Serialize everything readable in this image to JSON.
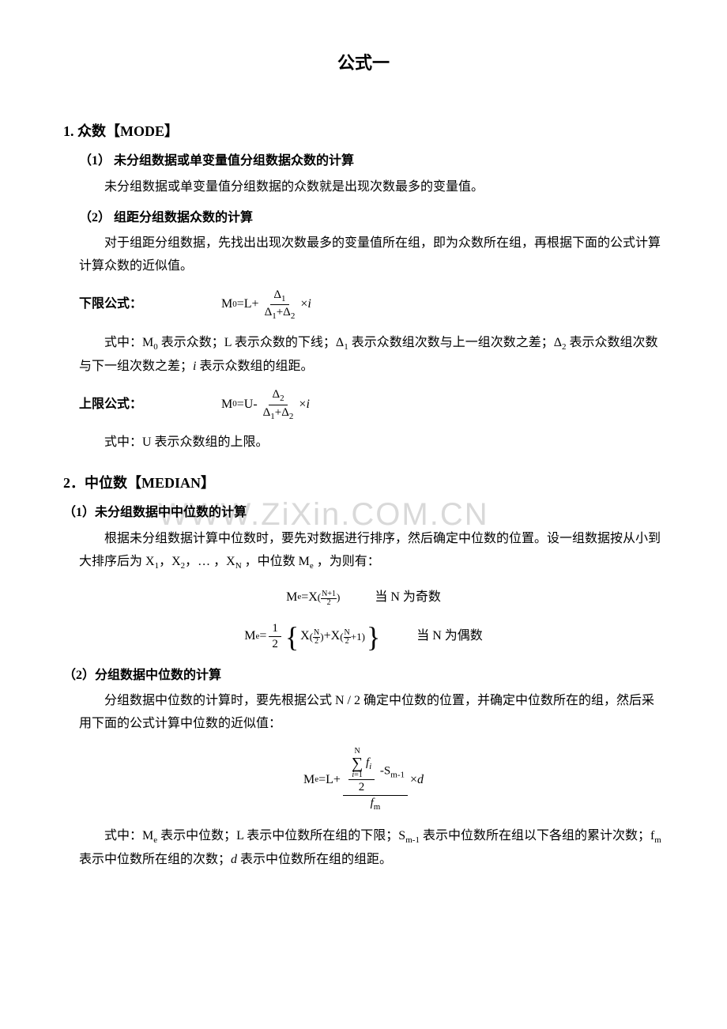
{
  "doc_title": "公式一",
  "section1": {
    "heading": "1. 众数【MODE】",
    "sub1_title": "（1） 未分组数据或单变量值分组数据众数的计算",
    "sub1_text": "未分组数据或单变量值分组数据的众数就是出现次数最多的变量值。",
    "sub2_title": "（2） 组距分组数据众数的计算",
    "sub2_text": "对于组距分组数据，先找出出现次数最多的变量值所在组，即为众数所在组，再根据下面的公式计算计算众数的近似值。",
    "lower_label": "下限公式：",
    "lower_explain": "式中：M₀ 表示众数；L 表示众数的下线；Δ₁ 表示众数组次数与上一组次数之差；Δ₂ 表示众数组次数与下一组次数之差；i 表示众数组的组距。",
    "upper_label": "上限公式：",
    "upper_explain": "式中：U 表示众数组的上限。"
  },
  "section2": {
    "heading": "2．中位数【MEDIAN】",
    "sub1_title": "（1）未分组数据中中位数的计算",
    "sub1_text": "根据未分组数据计算中位数时，要先对数据进行排序，然后确定中位数的位置。设一组数据按从小到大排序后为 X₁，X₂，… ，Xₙ ，中位数 Mₑ ，为则有：",
    "odd_label": "当 N 为奇数",
    "even_label": "当 N 为偶数",
    "sub2_title": "（2）分组数据中位数的计算",
    "sub2_text": "分组数据中位数的计算时，要先根据公式 N / 2 确定中位数的位置，并确定中位数所在的组，然后采用下面的公式计算中位数的近似值：",
    "explain2": "式中：Mₑ 表示中位数；L 表示中位数所在组的下限；Sₘ₋₁ 表示中位数所在组以下各组的累计次数；fₘ 表示中位数所在组的次数；d 表示中位数所在组的组距。"
  },
  "watermark_text": "WWW.ZiXin.COM.CN",
  "colors": {
    "text": "#000000",
    "background": "#ffffff",
    "watermark": "#d9d9d9"
  }
}
